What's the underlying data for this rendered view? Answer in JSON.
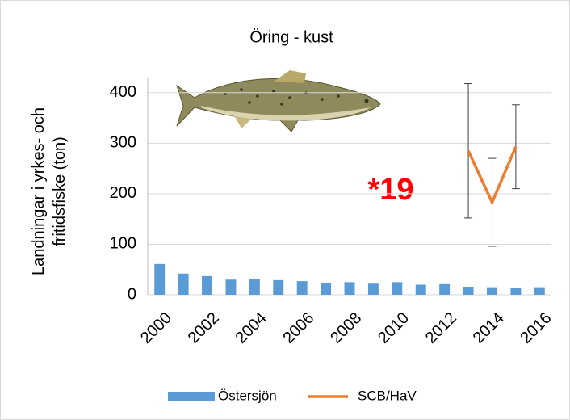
{
  "chart_data": {
    "type": "bar",
    "title": "Öring - kust",
    "y_label": "Landningar i yrkes- och fritidsfiske (ton)",
    "categories": [
      "2000",
      null,
      "2002",
      null,
      "2004",
      null,
      "2006",
      null,
      "2008",
      null,
      "2010",
      null,
      "2012",
      null,
      "2014",
      null,
      "2016"
    ],
    "series": [
      {
        "name": "Östersjön",
        "type": "bar",
        "color": "#5b9bd5",
        "values": [
          61,
          42,
          37,
          30,
          31,
          29,
          27,
          23,
          25,
          22,
          25,
          20,
          21,
          16,
          15,
          14,
          15
        ]
      },
      {
        "name": "SCB/HaV",
        "type": "line",
        "color": "#ed7d31",
        "values": [
          null,
          null,
          null,
          null,
          null,
          null,
          null,
          null,
          null,
          null,
          null,
          null,
          null,
          285,
          183,
          293,
          null
        ],
        "errors": [
          null,
          null,
          null,
          null,
          null,
          null,
          null,
          null,
          null,
          null,
          null,
          null,
          null,
          133,
          87,
          83,
          null
        ]
      }
    ],
    "annotation": "*19",
    "ylim": [
      0,
      430
    ],
    "yticks": [
      0,
      100,
      200,
      300,
      400
    ],
    "grid": true,
    "legend": "bottom"
  }
}
